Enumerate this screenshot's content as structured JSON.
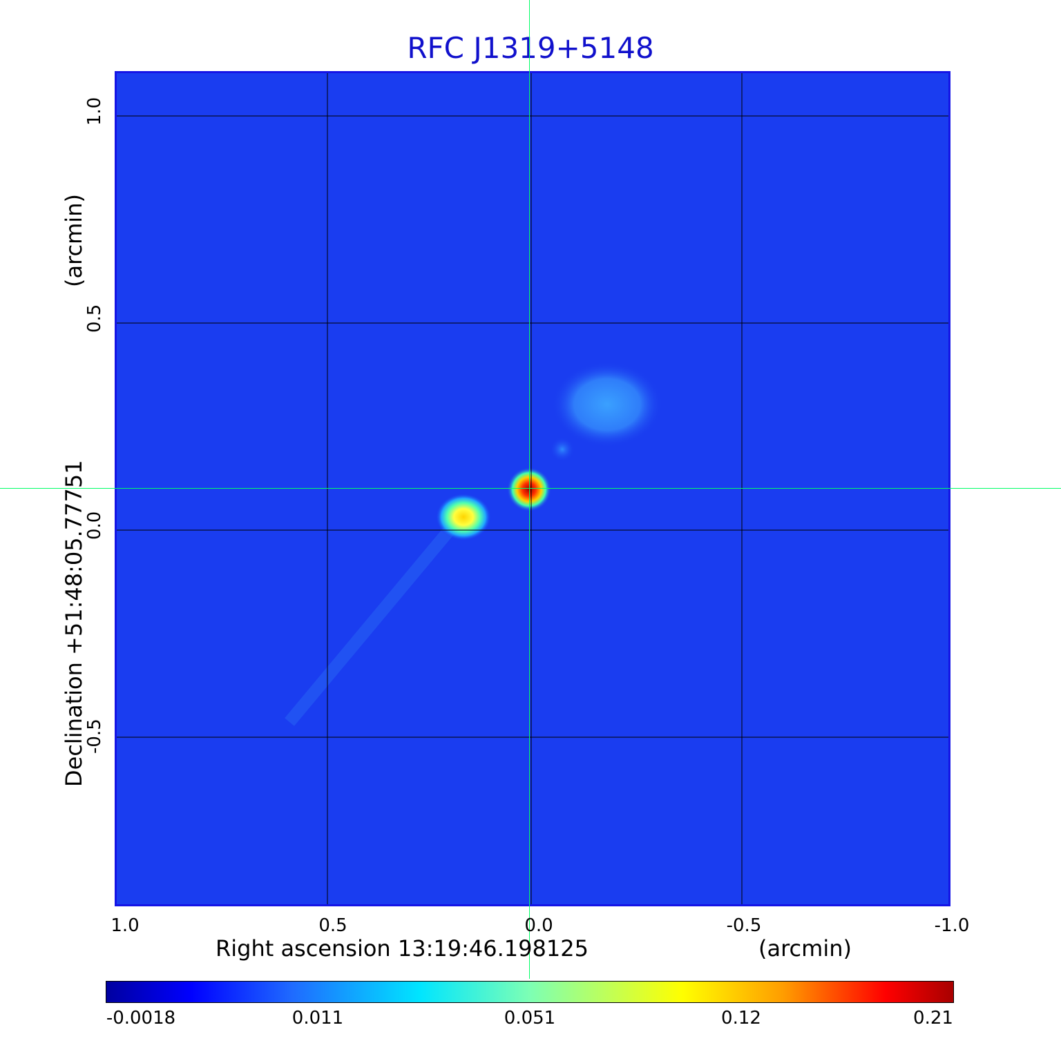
{
  "title": "RFC J1319+5148",
  "x_axis": {
    "label": "Right ascension  13:19:46.198125",
    "unit": "(arcmin)",
    "ticks": [
      "1.0",
      "0.5",
      "0.0",
      "-0.5",
      "-1.0"
    ]
  },
  "y_axis": {
    "label": "Declination  +51:48:05.77751",
    "unit": "(arcmin)",
    "ticks": [
      "1.0",
      "0.5",
      "0.0",
      "-0.5"
    ]
  },
  "colorbar": {
    "ticks": [
      "-0.0018",
      "0.011",
      "0.051",
      "0.12",
      "0.21"
    ]
  },
  "colors": {
    "title": "#1010cc",
    "frame": "#1414e6",
    "background_map": "#1a3df0",
    "crosshair": "#00ff66",
    "grid": "#000000"
  }
}
